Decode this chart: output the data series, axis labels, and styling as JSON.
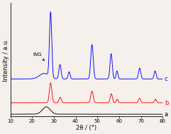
{
  "xmin": 10,
  "xmax": 80,
  "xlabel": "2θ / (°)",
  "ylabel": "Intensity / a.u.",
  "curve_labels": [
    "a",
    "b",
    "c"
  ],
  "curve_colors": [
    "black",
    "red",
    "blue"
  ],
  "offsets": [
    0.0,
    0.12,
    0.38
  ],
  "annotation_text": "ING",
  "bg_color": "#f5f0eb",
  "title_fontsize": 6,
  "tick_fontsize": 5,
  "label_fontsize": 6
}
